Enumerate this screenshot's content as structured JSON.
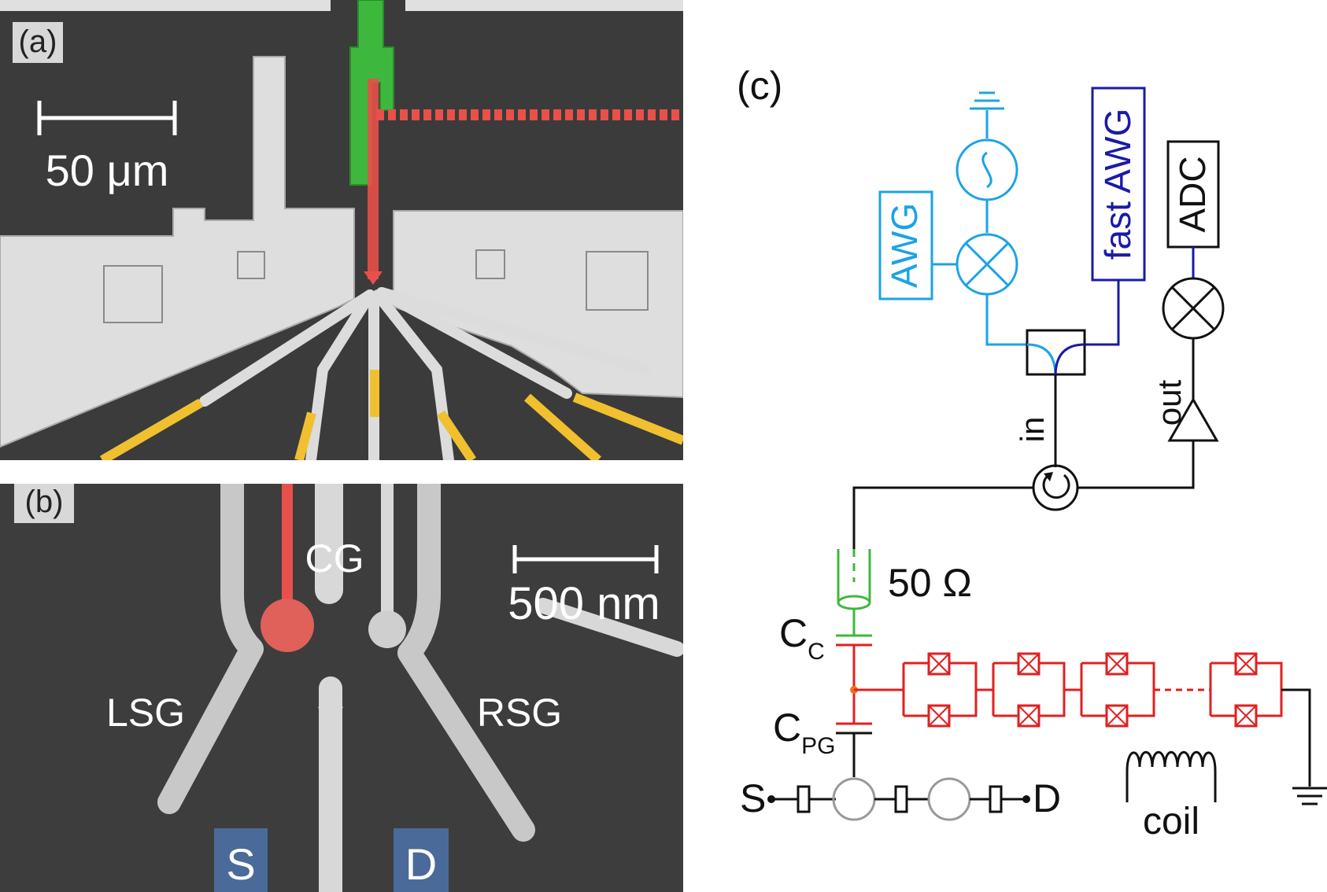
{
  "panel_a": {
    "label": "(a)",
    "scale_bar_text": "50 μm"
  },
  "panel_b": {
    "label": "(b)",
    "scale_bar_text": "500 nm",
    "gates": {
      "cg": "CG",
      "lsg": "LSG",
      "rsg": "RSG"
    },
    "contacts": {
      "source": "S",
      "drain": "D"
    }
  },
  "panel_c": {
    "label": "(c)",
    "instruments": {
      "awg": "AWG",
      "fast_awg": "fast AWG",
      "adc": "ADC"
    },
    "ports": {
      "in": "in",
      "out": "out"
    },
    "impedance": "50 Ω",
    "capacitors": {
      "cc": {
        "main": "C",
        "sub": "C"
      },
      "cpg": {
        "main": "C",
        "sub": "PG"
      }
    },
    "terminals": {
      "source": "S",
      "drain": "D"
    },
    "coil": "coil"
  },
  "colors": {
    "awg_blue": "#1ba3e6",
    "fast_awg_blue": "#1a1aa8",
    "line_green": "#3db83d",
    "jj_red": "#e02020",
    "gate_red": "#e8504a",
    "gold": "#f0c030",
    "substrate": "#3b3b3b",
    "metal": "#dcdcdc"
  }
}
